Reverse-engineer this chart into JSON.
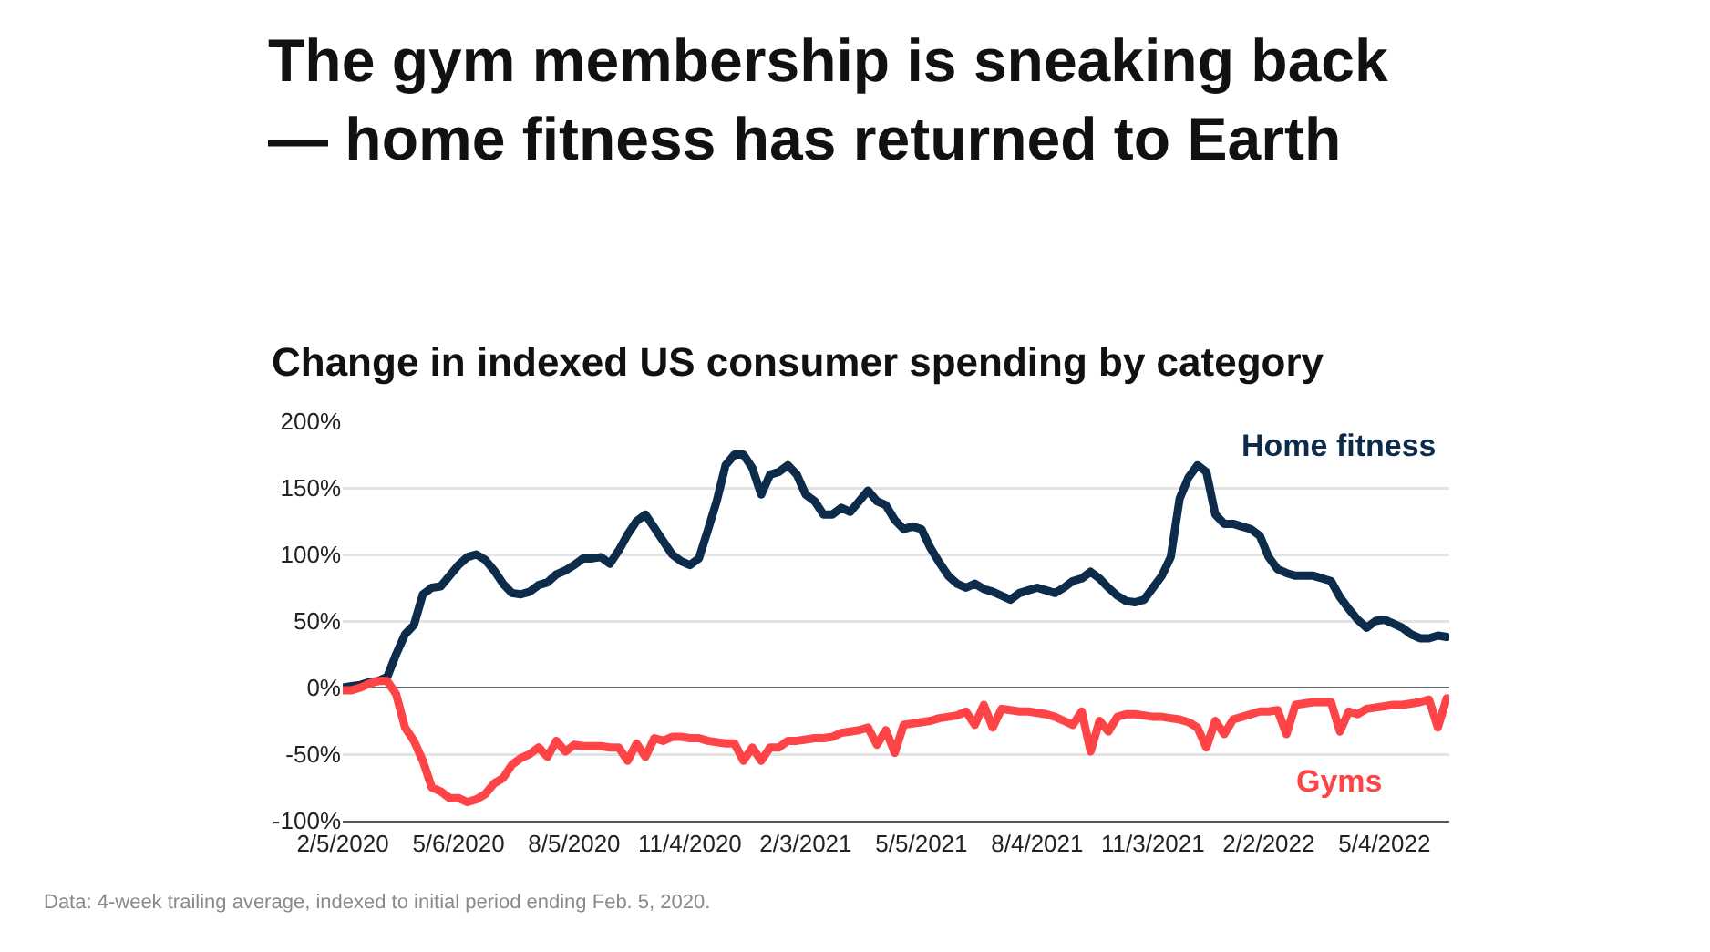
{
  "chart_data": {
    "type": "line",
    "title": "The gym membership is sneaking back\n— home fitness has returned to Earth",
    "subtitle": "Change in indexed US consumer spending by category",
    "annotations": [
      "Data: 4-week trailing average, indexed to initial period ending Feb. 5, 2020."
    ],
    "x": [
      "2020-02-05",
      "2020-02-12",
      "2020-02-19",
      "2020-02-26",
      "2020-03-04",
      "2020-03-11",
      "2020-03-18",
      "2020-03-25",
      "2020-04-01",
      "2020-04-08",
      "2020-04-15",
      "2020-04-22",
      "2020-04-29",
      "2020-05-06",
      "2020-05-13",
      "2020-05-20",
      "2020-05-27",
      "2020-06-03",
      "2020-06-10",
      "2020-06-17",
      "2020-06-24",
      "2020-07-01",
      "2020-07-08",
      "2020-07-15",
      "2020-07-22",
      "2020-07-29",
      "2020-08-05",
      "2020-08-12",
      "2020-08-19",
      "2020-08-26",
      "2020-09-02",
      "2020-09-09",
      "2020-09-16",
      "2020-09-23",
      "2020-09-30",
      "2020-10-07",
      "2020-10-14",
      "2020-10-21",
      "2020-10-28",
      "2020-11-04",
      "2020-11-11",
      "2020-11-18",
      "2020-11-25",
      "2020-12-02",
      "2020-12-09",
      "2020-12-16",
      "2020-12-23",
      "2020-12-30",
      "2021-01-06",
      "2021-01-13",
      "2021-01-20",
      "2021-01-27",
      "2021-02-03",
      "2021-02-10",
      "2021-02-17",
      "2021-02-24",
      "2021-03-03",
      "2021-03-10",
      "2021-03-17",
      "2021-03-24",
      "2021-03-31",
      "2021-04-07",
      "2021-04-14",
      "2021-04-21",
      "2021-04-28",
      "2021-05-05",
      "2021-05-12",
      "2021-05-19",
      "2021-05-26",
      "2021-06-02",
      "2021-06-09",
      "2021-06-16",
      "2021-06-23",
      "2021-06-30",
      "2021-07-07",
      "2021-07-14",
      "2021-07-21",
      "2021-07-28",
      "2021-08-04",
      "2021-08-11",
      "2021-08-18",
      "2021-08-25",
      "2021-09-01",
      "2021-09-08",
      "2021-09-15",
      "2021-09-22",
      "2021-09-29",
      "2021-10-06",
      "2021-10-13",
      "2021-10-20",
      "2021-10-27",
      "2021-11-03",
      "2021-11-10",
      "2021-11-17",
      "2021-11-24",
      "2021-12-01",
      "2021-12-08",
      "2021-12-15",
      "2021-12-22",
      "2021-12-29",
      "2022-01-05",
      "2022-01-12",
      "2022-01-19",
      "2022-01-26",
      "2022-02-02",
      "2022-02-09",
      "2022-02-16",
      "2022-02-23",
      "2022-03-02",
      "2022-03-09",
      "2022-03-16",
      "2022-03-23",
      "2022-03-30",
      "2022-04-06",
      "2022-04-13",
      "2022-04-20",
      "2022-04-27",
      "2022-05-04",
      "2022-05-11",
      "2022-05-18",
      "2022-05-25",
      "2022-06-01",
      "2022-06-08",
      "2022-06-15",
      "2022-06-22"
    ],
    "series": [
      {
        "name": "Home fitness",
        "color": "#0d2b4a",
        "values": [
          0,
          1,
          2,
          4,
          5,
          8,
          25,
          40,
          47,
          70,
          75,
          76,
          84,
          92,
          98,
          100,
          96,
          88,
          78,
          71,
          70,
          72,
          77,
          79,
          85,
          88,
          92,
          97,
          97,
          98,
          93,
          103,
          115,
          125,
          130,
          120,
          110,
          100,
          95,
          92,
          97,
          118,
          140,
          167,
          175,
          175,
          165,
          145,
          160,
          162,
          167,
          160,
          145,
          140,
          130,
          130,
          135,
          132,
          140,
          148,
          140,
          137,
          126,
          119,
          121,
          119,
          105,
          94,
          84,
          78,
          75,
          78,
          74,
          72,
          69,
          66,
          71,
          73,
          75,
          73,
          71,
          75,
          80,
          82,
          87,
          82,
          75,
          69,
          65,
          64,
          66,
          75,
          84,
          98,
          142,
          158,
          167,
          162,
          130,
          123,
          123,
          121,
          119,
          114,
          98,
          89,
          86,
          84,
          84,
          84,
          82,
          80,
          68,
          59,
          51,
          45,
          50,
          51,
          48,
          45,
          40,
          37,
          37,
          39,
          38
        ]
      },
      {
        "name": "Gyms",
        "color": "#ff4447",
        "values": [
          -2,
          -2,
          0,
          3,
          5,
          5,
          -5,
          -30,
          -40,
          -55,
          -75,
          -78,
          -83,
          -83,
          -86,
          -84,
          -80,
          -72,
          -68,
          -58,
          -53,
          -50,
          -45,
          -52,
          -40,
          -48,
          -43,
          -44,
          -44,
          -44,
          -45,
          -45,
          -55,
          -42,
          -52,
          -38,
          -40,
          -37,
          -37,
          -38,
          -38,
          -40,
          -41,
          -42,
          -42,
          -55,
          -45,
          -55,
          -45,
          -45,
          -40,
          -40,
          -39,
          -38,
          -38,
          -37,
          -34,
          -33,
          -32,
          -30,
          -43,
          -32,
          -49,
          -28,
          -27,
          -26,
          -25,
          -23,
          -22,
          -21,
          -18,
          -28,
          -13,
          -30,
          -16,
          -17,
          -18,
          -18,
          -19,
          -20,
          -22,
          -25,
          -28,
          -18,
          -48,
          -25,
          -33,
          -22,
          -20,
          -20,
          -21,
          -22,
          -22,
          -23,
          -24,
          -26,
          -30,
          -45,
          -25,
          -35,
          -24,
          -22,
          -20,
          -18,
          -18,
          -17,
          -35,
          -13,
          -12,
          -11,
          -11,
          -11,
          -33,
          -18,
          -20,
          -16,
          -15,
          -14,
          -13,
          -13,
          -12,
          -11,
          -9,
          -30,
          -8
        ]
      }
    ],
    "xlim": [
      "2020-02-05",
      "2022-06-24"
    ],
    "xticks": [
      {
        "value": "2020-02-05",
        "label": "2/5/2020"
      },
      {
        "value": "2020-05-06",
        "label": "5/6/2020"
      },
      {
        "value": "2020-08-05",
        "label": "8/5/2020"
      },
      {
        "value": "2020-11-04",
        "label": "11/4/2020"
      },
      {
        "value": "2021-02-03",
        "label": "2/3/2021"
      },
      {
        "value": "2021-05-05",
        "label": "5/5/2021"
      },
      {
        "value": "2021-08-04",
        "label": "8/4/2021"
      },
      {
        "value": "2021-11-03",
        "label": "11/3/2021"
      },
      {
        "value": "2022-02-02",
        "label": "2/2/2022"
      },
      {
        "value": "2022-05-04",
        "label": "5/4/2022"
      }
    ],
    "ylim": [
      -100,
      200
    ],
    "yticks": [
      {
        "value": -100,
        "label": "-100%"
      },
      {
        "value": -50,
        "label": "-50%"
      },
      {
        "value": 0,
        "label": "0%"
      },
      {
        "value": 50,
        "label": "50%"
      },
      {
        "value": 100,
        "label": "100%"
      },
      {
        "value": 150,
        "label": "150%"
      },
      {
        "value": 200,
        "label": "200%"
      }
    ],
    "grid": "y",
    "legend": false,
    "marker": "none",
    "line_style": "solid"
  }
}
